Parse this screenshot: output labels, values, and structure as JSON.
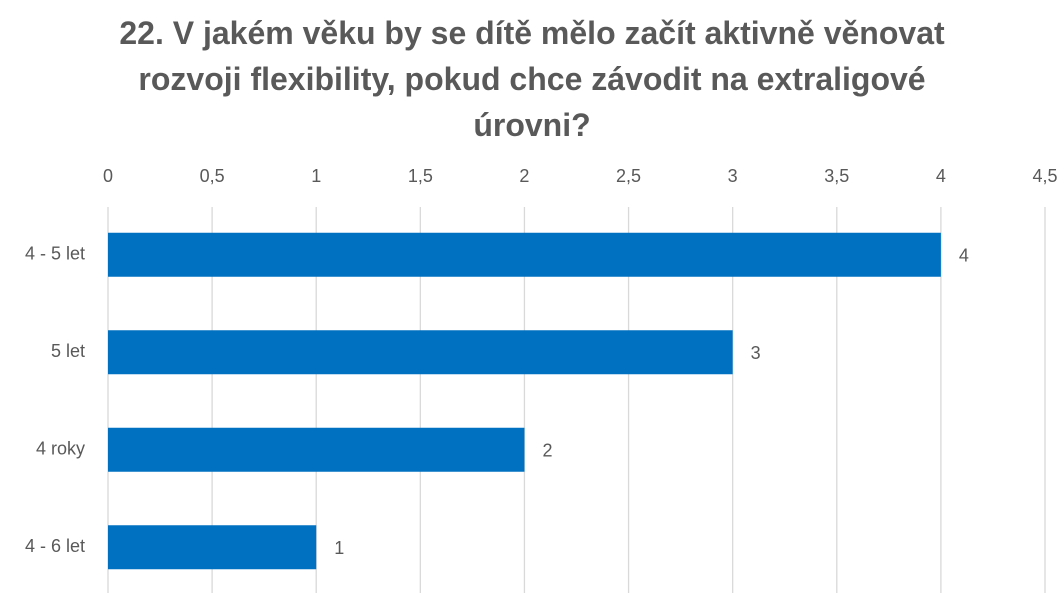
{
  "chart_data": {
    "type": "bar",
    "orientation": "horizontal",
    "title": "22. V jakém věku by se dítě mělo začít aktivně věnovat rozvoji flexibility, pokud chce závodit na extraligové úrovni?",
    "categories": [
      "4 - 5 let",
      "5 let",
      "4 roky",
      "4 - 6 let"
    ],
    "values": [
      4,
      3,
      2,
      1
    ],
    "color": "#0070c0",
    "xlim": [
      0,
      4.5
    ],
    "xticks": [
      0,
      {
        "value": 0.5,
        "label": "0,5"
      },
      1,
      {
        "value": 1.5,
        "label": "1,5"
      },
      2,
      {
        "value": 2.5,
        "label": "2,5"
      },
      3,
      {
        "value": 3.5,
        "label": "3,5"
      },
      4,
      {
        "value": 4.5,
        "label": "4,5"
      }
    ],
    "grid": true
  }
}
